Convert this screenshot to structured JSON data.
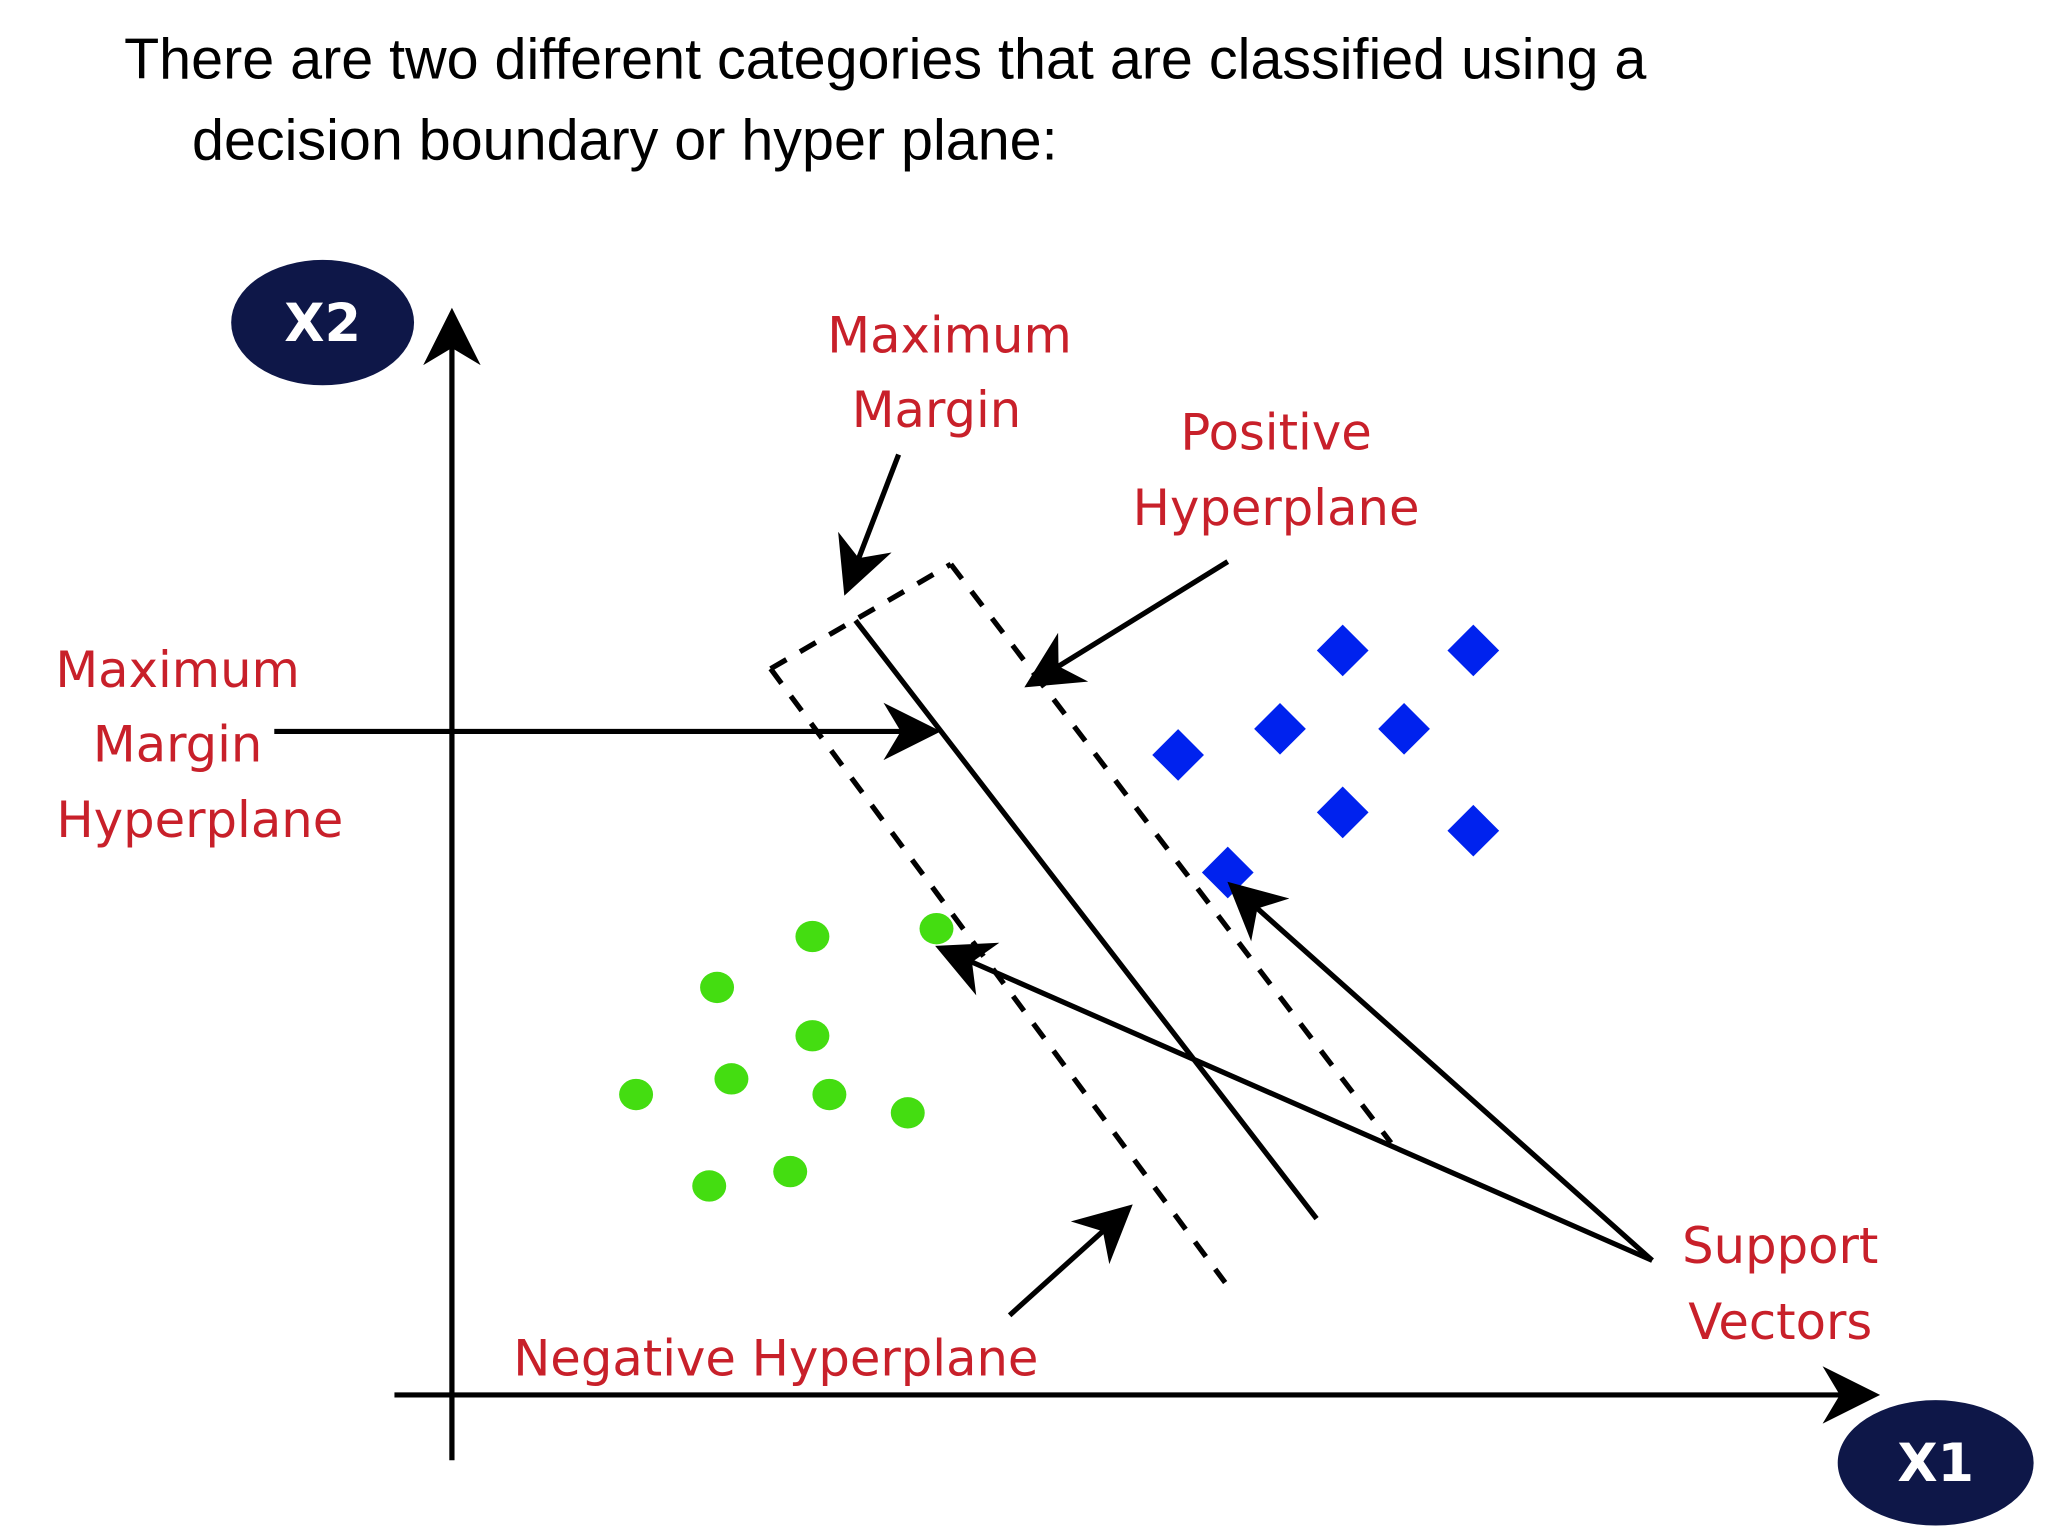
{
  "heading": {
    "line1": "There are two different categories that are classified using a",
    "line2": "decision boundary or hyper plane:"
  },
  "diagram": {
    "axes": {
      "x": "X1",
      "y": "X2"
    },
    "labels": {
      "maximum_margin": [
        "Maximum",
        "Margin"
      ],
      "positive_hyperplane": [
        "Positive",
        "Hyperplane"
      ],
      "maximum_margin_hyperplane": [
        "Maximum",
        "Margin",
        "Hyperplane"
      ],
      "negative_hyperplane": "Negative Hyperplane",
      "support_vectors": [
        "Support",
        "Vectors"
      ]
    }
  }
}
